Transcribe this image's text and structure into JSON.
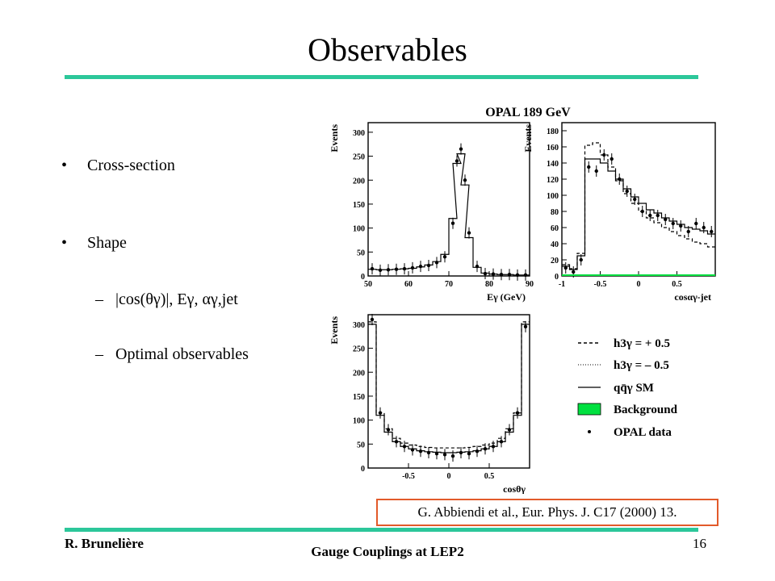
{
  "slide": {
    "title": "Observables",
    "bullets": [
      {
        "marker": "•",
        "text": "Cross-section"
      },
      {
        "marker": "•",
        "text": "Shape"
      }
    ],
    "sub_bullets": [
      {
        "marker": "–",
        "text": "|cos(θγ)|, Eγ, αγ,jet"
      },
      {
        "marker": "–",
        "text": "Optimal observables"
      }
    ],
    "citation": "G. Abbiendi et al., Eur. Phys. J. C17 (2000) 13.",
    "footer_left": "R. Brunelière",
    "footer_center": "Gauge Couplings at LEP2",
    "page_number": "16",
    "accent_color": "#2cc79a",
    "citation_border_color": "#e25a2a"
  },
  "figure": {
    "header": "OPAL 189 GeV",
    "legend": [
      {
        "style": "dashed",
        "label": "h3γ = + 0.5"
      },
      {
        "style": "dotted",
        "label": "h3γ = – 0.5"
      },
      {
        "style": "solid",
        "label": "qq̄γ SM"
      },
      {
        "style": "green-box",
        "label": "Background"
      },
      {
        "style": "dot",
        "label": "OPAL data"
      }
    ]
  },
  "chart_data": [
    {
      "type": "line",
      "title": "",
      "xlabel": "Eγ (GeV)",
      "ylabel": "Events",
      "xlim": [
        50,
        90
      ],
      "ylim": [
        0,
        320
      ],
      "xticks": [
        "50",
        "60",
        "70",
        "80",
        "90"
      ],
      "yticks": [
        "0",
        "50",
        "100",
        "150",
        "200",
        "250",
        "300"
      ],
      "x": [
        51,
        53,
        55,
        57,
        59,
        61,
        63,
        65,
        67,
        69,
        71,
        72,
        73,
        74,
        75,
        77,
        79,
        81,
        83,
        85,
        87,
        89
      ],
      "series": [
        {
          "name": "OPAL data",
          "values": [
            15,
            12,
            13,
            14,
            15,
            17,
            20,
            22,
            28,
            40,
            110,
            240,
            265,
            200,
            90,
            20,
            5,
            4,
            3,
            3,
            2,
            2
          ]
        },
        {
          "name": "qq̄γ SM",
          "values": [
            14,
            13,
            13,
            14,
            15,
            16,
            19,
            23,
            30,
            45,
            120,
            235,
            255,
            190,
            80,
            18,
            6,
            4,
            3,
            3,
            2,
            2
          ]
        }
      ]
    },
    {
      "type": "line",
      "title": "",
      "xlabel": "cosαγ-jet",
      "ylabel": "Events",
      "xlim": [
        -1,
        1
      ],
      "ylim": [
        0,
        190
      ],
      "xticks": [
        "-1",
        "-0.5",
        "0",
        "0.5"
      ],
      "yticks": [
        "0",
        "20",
        "40",
        "60",
        "80",
        "100",
        "120",
        "140",
        "160",
        "180"
      ],
      "x": [
        -0.95,
        -0.85,
        -0.75,
        -0.65,
        -0.55,
        -0.45,
        -0.35,
        -0.25,
        -0.15,
        -0.05,
        0.05,
        0.15,
        0.25,
        0.35,
        0.45,
        0.55,
        0.65,
        0.75,
        0.85,
        0.95
      ],
      "series": [
        {
          "name": "OPAL data",
          "values": [
            10,
            5,
            20,
            135,
            130,
            150,
            145,
            120,
            105,
            95,
            80,
            75,
            75,
            70,
            65,
            62,
            55,
            65,
            60,
            55
          ]
        },
        {
          "name": "qq̄γ SM",
          "values": [
            12,
            8,
            25,
            145,
            145,
            140,
            130,
            120,
            108,
            98,
            90,
            82,
            78,
            72,
            68,
            64,
            60,
            58,
            56,
            52
          ]
        },
        {
          "name": "h3γ = + 0.5",
          "values": [
            14,
            9,
            28,
            162,
            165,
            150,
            135,
            118,
            102,
            90,
            80,
            72,
            66,
            60,
            55,
            50,
            46,
            42,
            40,
            36
          ]
        },
        {
          "name": "Background",
          "values": [
            2,
            2,
            2,
            2,
            2,
            2,
            2,
            2,
            2,
            2,
            2,
            2,
            2,
            2,
            2,
            2,
            2,
            2,
            2,
            2
          ]
        }
      ]
    },
    {
      "type": "line",
      "title": "",
      "xlabel": "cosθγ",
      "ylabel": "Events",
      "xlim": [
        -1,
        1
      ],
      "ylim": [
        0,
        320
      ],
      "xticks": [
        "-0.5",
        "0",
        "0.5"
      ],
      "yticks": [
        "0",
        "50",
        "100",
        "150",
        "200",
        "250",
        "300"
      ],
      "x": [
        -0.95,
        -0.85,
        -0.75,
        -0.65,
        -0.55,
        -0.45,
        -0.35,
        -0.25,
        -0.15,
        -0.05,
        0.05,
        0.15,
        0.25,
        0.35,
        0.45,
        0.55,
        0.65,
        0.75,
        0.85,
        0.95
      ],
      "series": [
        {
          "name": "OPAL data",
          "values": [
            310,
            115,
            80,
            55,
            45,
            38,
            35,
            32,
            30,
            28,
            25,
            32,
            30,
            35,
            40,
            45,
            55,
            80,
            115,
            295
          ]
        },
        {
          "name": "qq̄γ SM",
          "values": [
            300,
            110,
            75,
            55,
            45,
            40,
            36,
            34,
            33,
            32,
            32,
            33,
            34,
            36,
            40,
            45,
            55,
            75,
            110,
            300
          ]
        },
        {
          "name": "h3γ = + 0.5",
          "values": [
            305,
            115,
            82,
            62,
            52,
            48,
            45,
            43,
            42,
            42,
            42,
            42,
            43,
            45,
            48,
            52,
            62,
            82,
            115,
            305
          ]
        }
      ]
    }
  ]
}
